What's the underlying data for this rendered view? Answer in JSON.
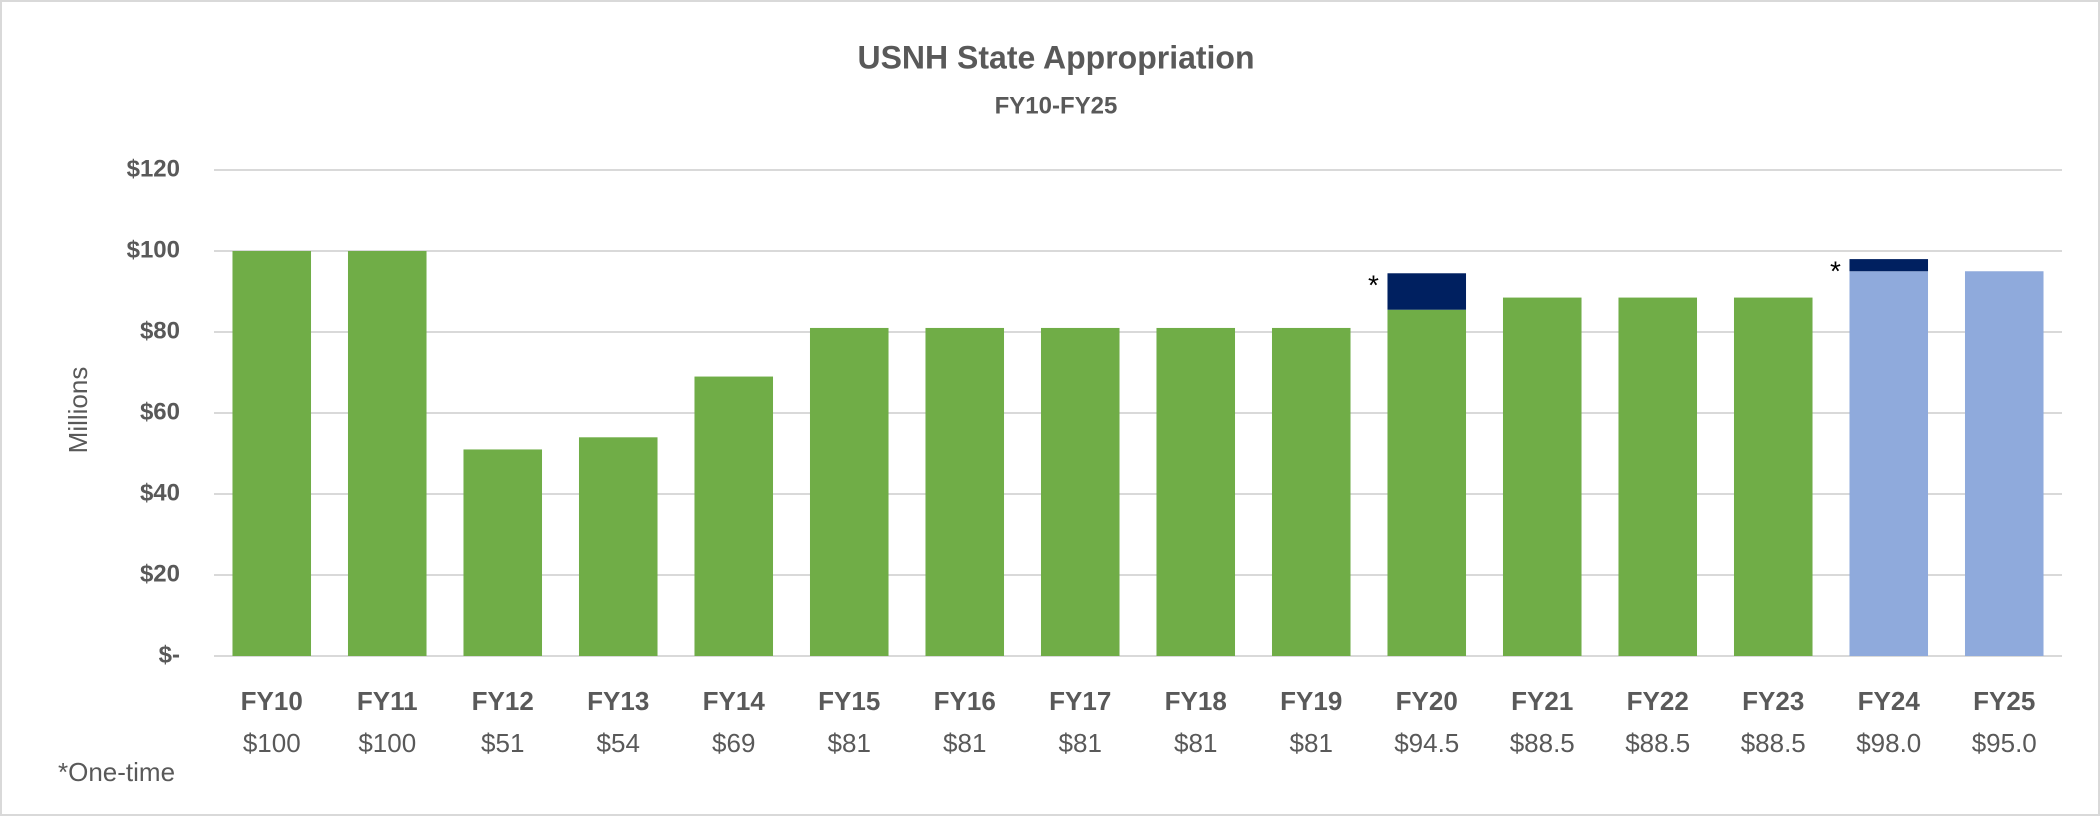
{
  "chart_data": {
    "type": "stacked-bar",
    "title": "USNH State Appropriation",
    "subtitle": "FY10-FY25",
    "y_label": "Millions",
    "note": "*One-time",
    "annotation": "*",
    "categories": [
      "FY10",
      "FY11",
      "FY12",
      "FY13",
      "FY14",
      "FY15",
      "FY16",
      "FY17",
      "FY18",
      "FY19",
      "FY20",
      "FY21",
      "FY22",
      "FY23",
      "FY24",
      "FY25"
    ],
    "series": [
      {
        "values": [
          100,
          100,
          51,
          54,
          69,
          81,
          81,
          81,
          81,
          81,
          85.5,
          88.5,
          88.5,
          88.5,
          95,
          95
        ],
        "colors": [
          "#70ad47",
          "#70ad47",
          "#70ad47",
          "#70ad47",
          "#70ad47",
          "#70ad47",
          "#70ad47",
          "#70ad47",
          "#70ad47",
          "#70ad47",
          "#70ad47",
          "#70ad47",
          "#70ad47",
          "#70ad47",
          "#8faadc",
          "#8faadc"
        ]
      },
      {
        "values": [
          null,
          null,
          null,
          null,
          null,
          null,
          null,
          null,
          null,
          null,
          9,
          null,
          null,
          null,
          3,
          null
        ],
        "color": "#002060"
      }
    ],
    "totals": {
      "values": [
        100,
        100,
        51,
        54,
        69,
        81,
        81,
        81,
        81,
        81,
        94.5,
        88.5,
        88.5,
        88.5,
        98,
        95
      ],
      "value_labels": [
        "$100",
        "$100",
        "$51",
        "$54",
        "$69",
        "$81",
        "$81",
        "$81",
        "$81",
        "$81",
        "$94.5",
        "$88.5",
        "$88.5",
        "$88.5",
        "$98.0",
        "$95.0"
      ]
    },
    "ylim": [
      0,
      120
    ],
    "yticks": [
      {
        "value": 0,
        "label": "$-"
      },
      {
        "value": 20,
        "label": "$20"
      },
      {
        "value": 40,
        "label": "$40"
      },
      {
        "value": 60,
        "label": "$60"
      },
      {
        "value": 80,
        "label": "$80"
      },
      {
        "value": 100,
        "label": "$100"
      },
      {
        "value": 120,
        "label": "$120"
      }
    ],
    "grid": true
  }
}
